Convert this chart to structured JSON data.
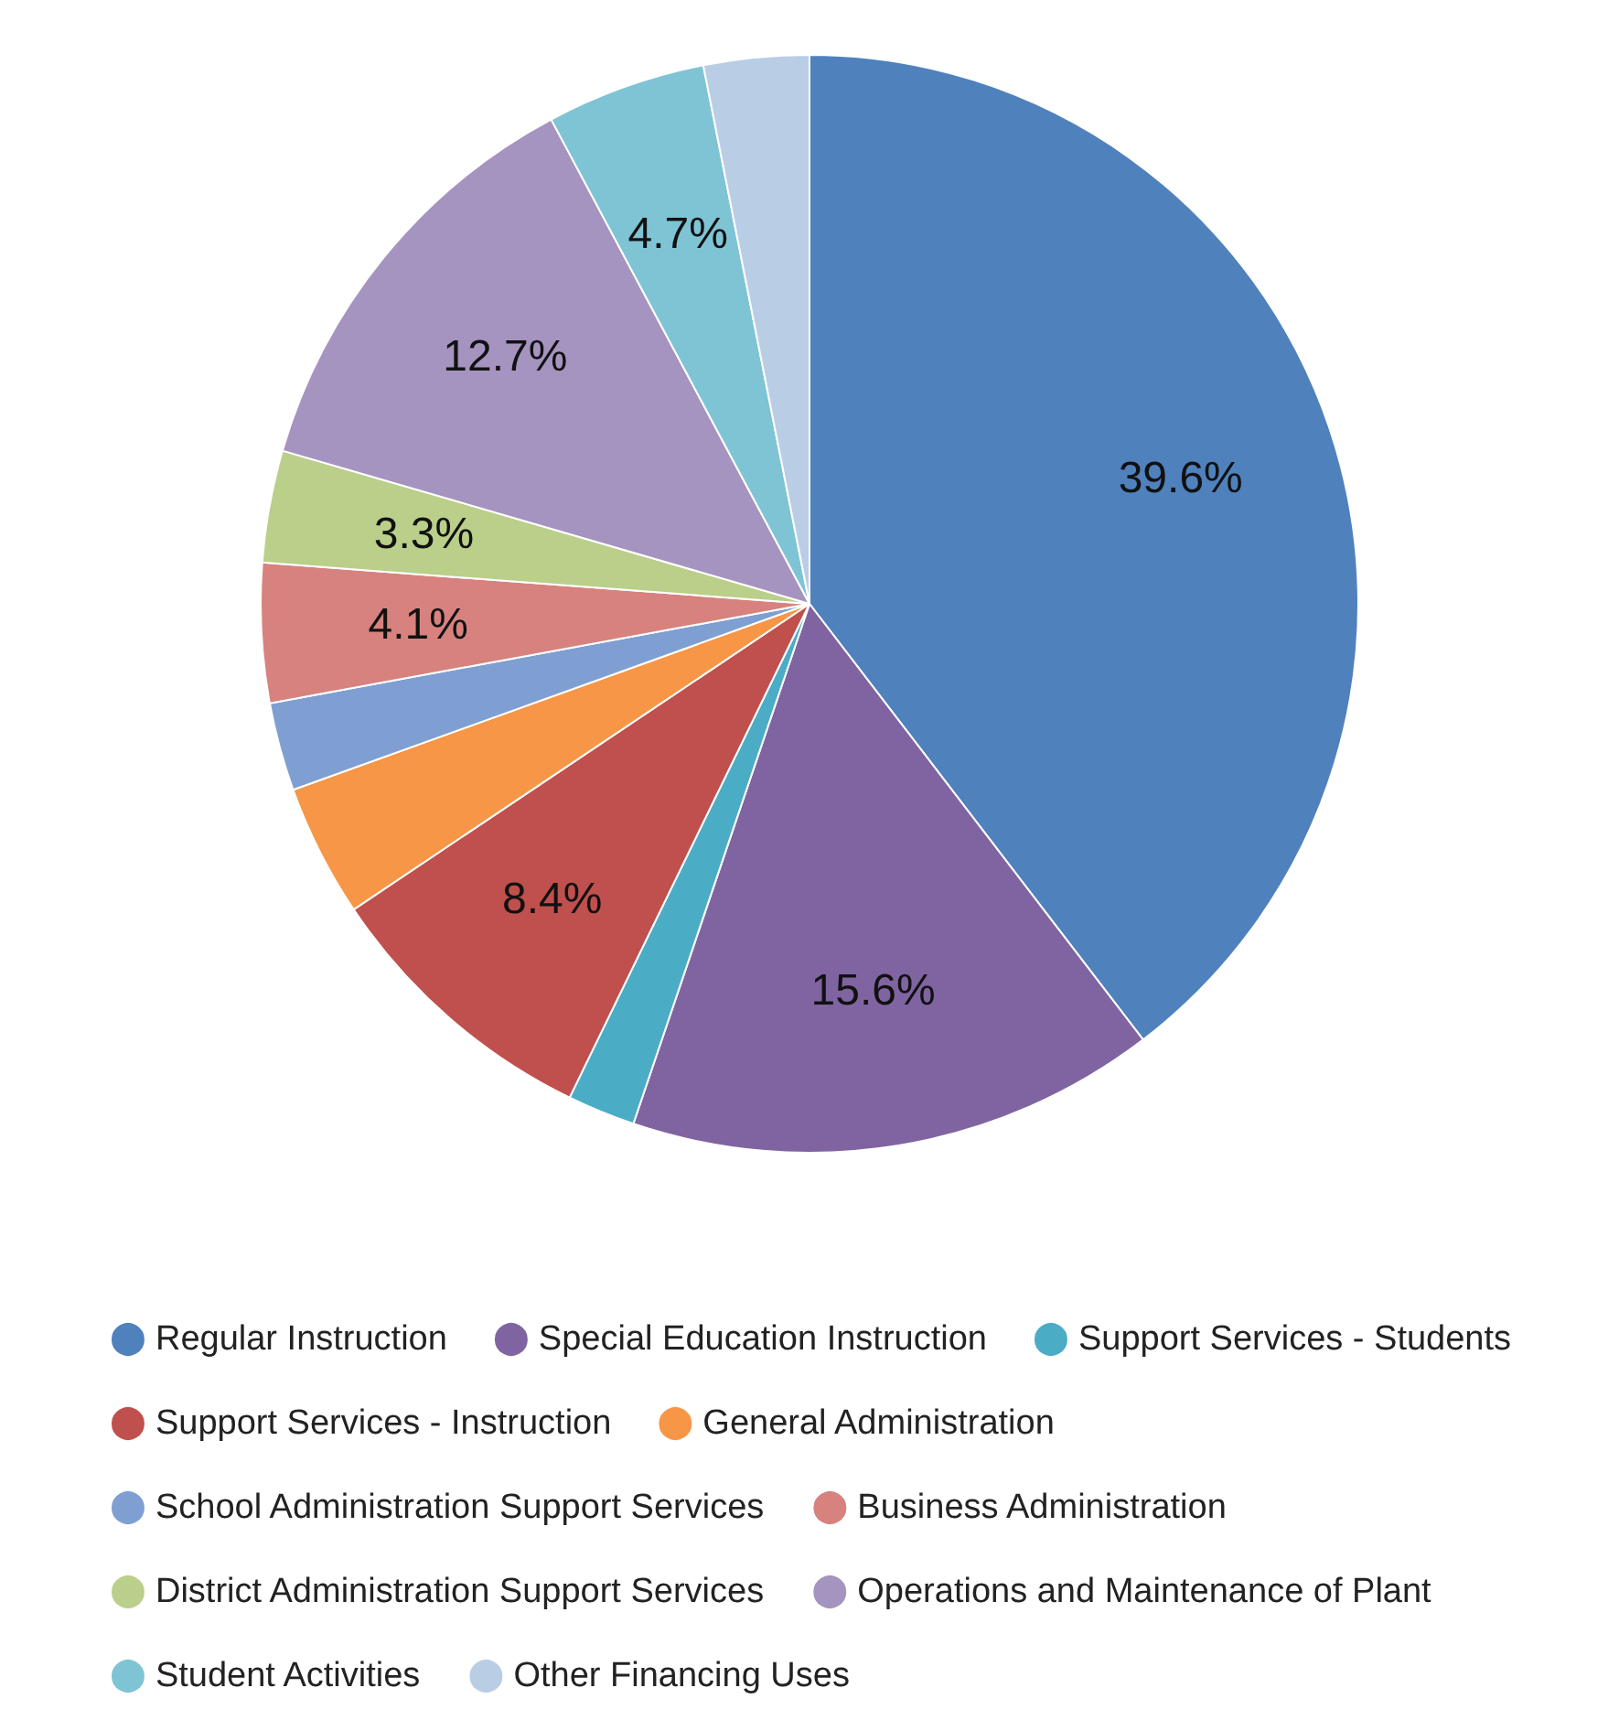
{
  "chart_data": {
    "type": "pie",
    "categories": [
      "Regular Instruction",
      "Special Education Instruction",
      "Support Services - Students",
      "Support Services - Instruction",
      "General Administration",
      "School Administration Support Services",
      "Business Administration",
      "District Administration Support Services",
      "Operations and Maintenance of Plant",
      "Student Activities",
      "Other Financing Uses"
    ],
    "values": [
      39.6,
      15.6,
      2.0,
      8.4,
      3.9,
      2.6,
      4.1,
      3.3,
      12.7,
      4.7,
      3.1
    ],
    "value_labels": [
      "39.6%",
      "15.6%",
      null,
      "8.4%",
      null,
      null,
      "4.1%",
      "3.3%",
      "12.7%",
      "4.7%",
      null
    ],
    "colors": [
      "#4f81bd",
      "#8064a2",
      "#4bacc6",
      "#c0504d",
      "#f79646",
      "#7f9fd3",
      "#d7827e",
      "#bacf8a",
      "#a593c0",
      "#7fc4d4",
      "#b9cde5"
    ],
    "legend": "bottom"
  }
}
